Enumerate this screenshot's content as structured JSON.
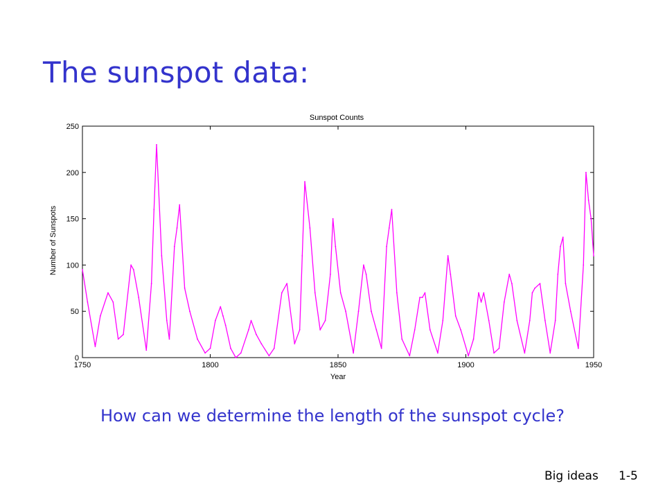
{
  "slide": {
    "title": "The sunspot data:",
    "question": "How can we determine the length of the sunspot cycle?",
    "footer_left": "Big ideas",
    "footer_right": "1-5"
  },
  "chart_data": {
    "type": "line",
    "title": "Sunspot Counts",
    "xlabel": "Year",
    "ylabel": "Number of Sunspots",
    "xlim": [
      1750,
      1950
    ],
    "ylim": [
      0,
      250
    ],
    "xticks": [
      1750,
      1800,
      1850,
      1900,
      1950
    ],
    "yticks": [
      0,
      50,
      100,
      150,
      200,
      250
    ],
    "grid": false,
    "line_color": "#ff00ff",
    "series": [
      {
        "x": [
          1750,
          1752,
          1755,
          1757,
          1760,
          1762,
          1764,
          1766,
          1769,
          1770,
          1772,
          1775,
          1777,
          1778,
          1779,
          1781,
          1783,
          1784,
          1786,
          1787,
          1788,
          1790,
          1792,
          1795,
          1798,
          1800,
          1802,
          1804,
          1805,
          1806,
          1808,
          1810,
          1812,
          1815,
          1816,
          1818,
          1820,
          1823,
          1825,
          1828,
          1830,
          1833,
          1835,
          1836,
          1837,
          1839,
          1841,
          1843,
          1845,
          1847,
          1848,
          1849,
          1851,
          1853,
          1856,
          1858,
          1860,
          1861,
          1863,
          1865,
          1867,
          1869,
          1870,
          1871,
          1873,
          1875,
          1878,
          1880,
          1882,
          1883,
          1884,
          1886,
          1889,
          1891,
          1893,
          1894,
          1896,
          1898,
          1901,
          1903,
          1905,
          1906,
          1907,
          1909,
          1911,
          1913,
          1915,
          1917,
          1918,
          1920,
          1923,
          1925,
          1926,
          1927,
          1929,
          1931,
          1933,
          1935,
          1936,
          1937,
          1938,
          1939,
          1941,
          1944,
          1946,
          1947,
          1948,
          1949,
          1950
        ],
        "y": [
          95,
          60,
          12,
          45,
          70,
          60,
          20,
          25,
          100,
          95,
          65,
          8,
          80,
          160,
          230,
          110,
          40,
          20,
          120,
          140,
          165,
          75,
          50,
          20,
          5,
          10,
          40,
          55,
          45,
          35,
          10,
          0,
          5,
          30,
          40,
          25,
          15,
          2,
          10,
          70,
          80,
          15,
          30,
          110,
          190,
          140,
          70,
          30,
          40,
          90,
          150,
          120,
          70,
          50,
          5,
          50,
          100,
          90,
          50,
          30,
          10,
          120,
          140,
          160,
          70,
          20,
          2,
          30,
          65,
          65,
          70,
          30,
          5,
          40,
          110,
          90,
          45,
          30,
          2,
          20,
          70,
          60,
          70,
          40,
          5,
          10,
          60,
          90,
          80,
          40,
          5,
          40,
          70,
          75,
          80,
          40,
          5,
          40,
          90,
          120,
          130,
          80,
          50,
          10,
          100,
          200,
          170,
          150,
          110
        ]
      }
    ]
  }
}
